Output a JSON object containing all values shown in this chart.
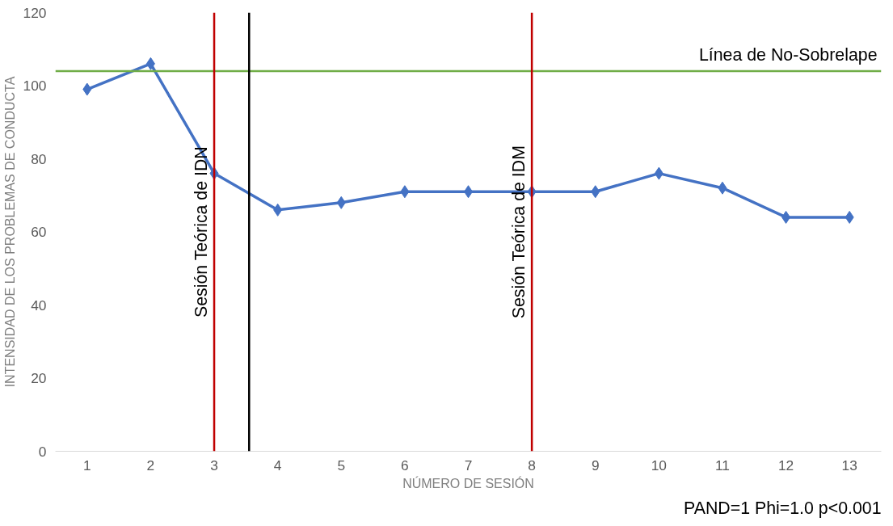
{
  "chart_data": {
    "type": "line",
    "xlabel": "NÚMERO DE SESIÓN",
    "ylabel": "INTENSIDAD DE LOS PROBLEMAS DE CONDUCTA",
    "x": [
      1,
      2,
      3,
      4,
      5,
      6,
      7,
      8,
      9,
      10,
      11,
      12,
      13
    ],
    "series": [
      {
        "color": "#4472c4",
        "values": [
          99,
          106,
          76,
          66,
          68,
          71,
          71,
          71,
          71,
          76,
          72,
          64,
          64
        ]
      }
    ],
    "marker": "diamond",
    "xlim": [
      0.5,
      13.5
    ],
    "xticks": [
      1,
      2,
      3,
      4,
      5,
      6,
      7,
      8,
      9,
      10,
      11,
      12,
      13
    ],
    "ylim": [
      0,
      120
    ],
    "yticks": [
      0,
      20,
      40,
      60,
      80,
      100,
      120
    ],
    "grid": false,
    "ref_lines": [
      {
        "axis": "y",
        "value": 104,
        "label": "Línea de No-Sobrelape",
        "color": "#70ad47"
      },
      {
        "axis": "x",
        "value": 3,
        "label": "Sesión Teórica de IDN",
        "color": "#c00000"
      },
      {
        "axis": "x",
        "value": 3.55,
        "label": null,
        "color": "#000000"
      },
      {
        "axis": "x",
        "value": 8,
        "label": "Sesión Teórica de IDM",
        "color": "#c00000"
      }
    ],
    "annotations": [
      "PAND=1 Phi=1.0 p<0.001"
    ]
  }
}
